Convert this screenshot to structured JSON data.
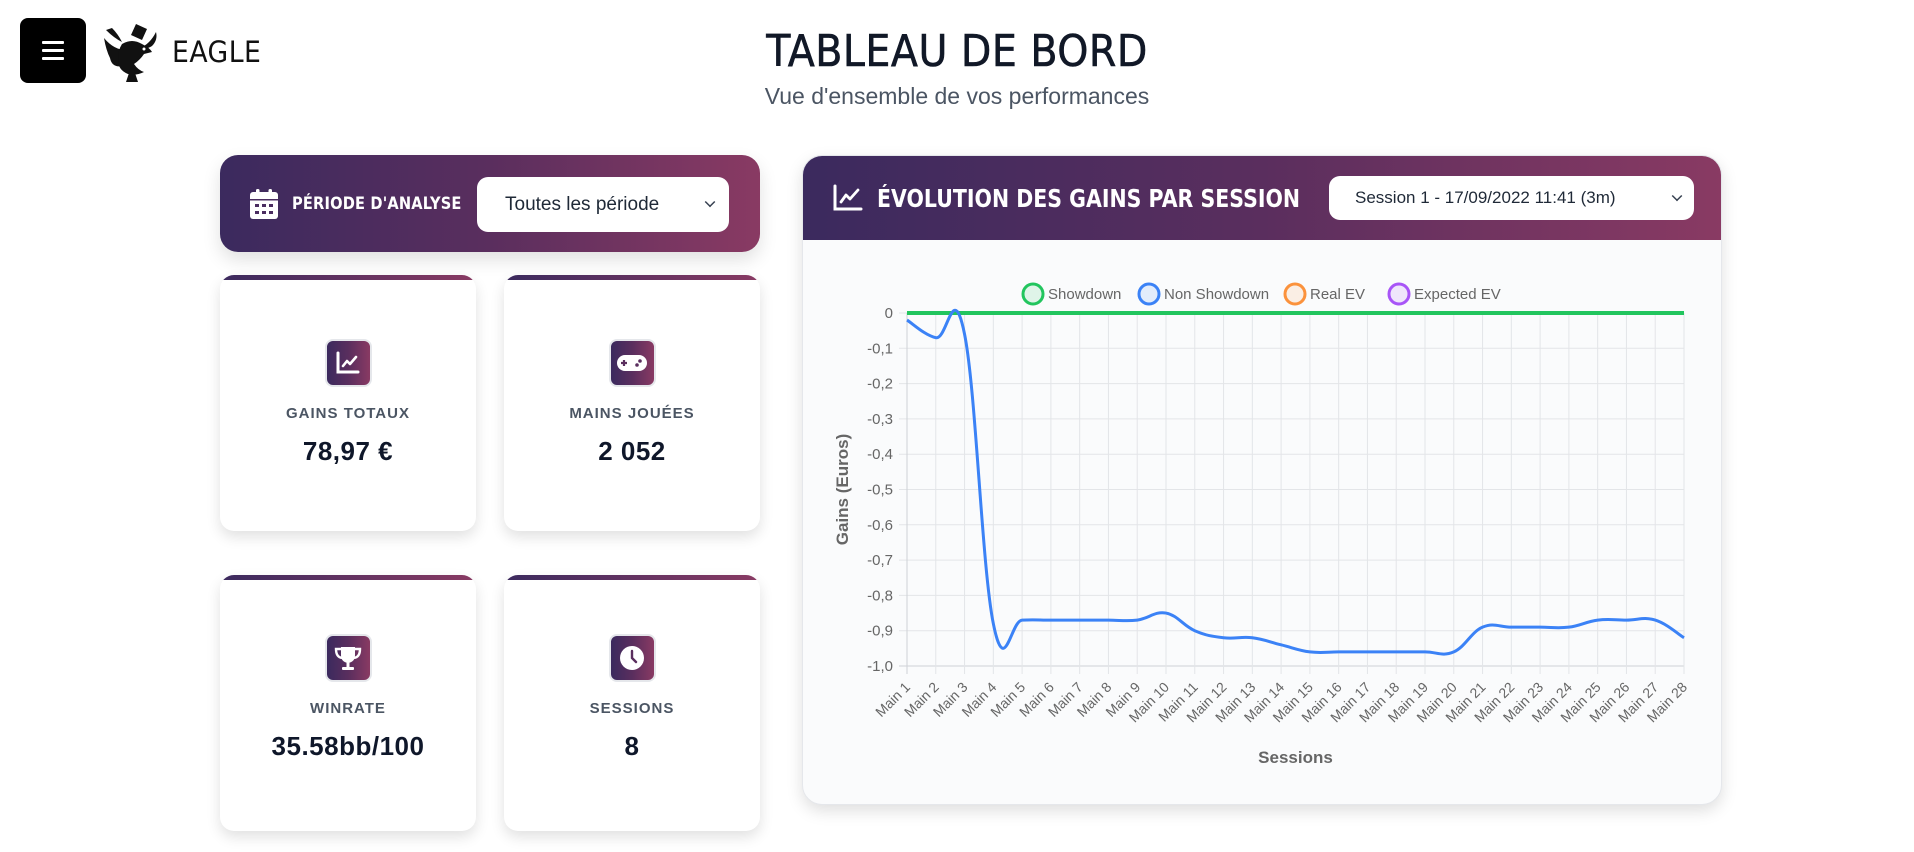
{
  "header": {
    "brand_name": "EAGLE",
    "title": "TABLEAU DE BORD",
    "subtitle": "Vue d'ensemble de vos performances",
    "menu_icon": "hamburger-icon",
    "logo_icon": "eagle-spade-logo"
  },
  "period": {
    "icon": "calendar-icon",
    "label": "PÉRIODE D'ANALYSE",
    "selected": "Toutes les période"
  },
  "stats": [
    {
      "icon": "chart-line-icon",
      "label": "GAINS TOTAUX",
      "value": "78,97 €"
    },
    {
      "icon": "gamepad-icon",
      "label": "MAINS JOUÉES",
      "value": "2 052"
    },
    {
      "icon": "trophy-icon",
      "label": "WINRATE",
      "value": "35.58bb/100"
    },
    {
      "icon": "clock-icon",
      "label": "SESSIONS",
      "value": "8"
    }
  ],
  "chart_panel": {
    "icon": "chart-line-icon",
    "title": "ÉVOLUTION DES GAINS PAR SESSION",
    "session_selected": "Session 1 - 17/09/2022 11:41 (3m)"
  },
  "colors": {
    "gradient_start": "#3b2a5e",
    "gradient_end": "#893a63",
    "showdown": "#22c55e",
    "non_showdown": "#3b82f6",
    "real_ev": "#fb923c",
    "expected_ev": "#a855f7"
  },
  "chart_data": {
    "type": "line",
    "title": "",
    "xlabel": "Sessions",
    "ylabel": "Gains (Euros)",
    "ylim": [
      -1.0,
      0
    ],
    "yticks": [
      "0",
      "-0,1",
      "-0,2",
      "-0,3",
      "-0,4",
      "-0,5",
      "-0,6",
      "-0,7",
      "-0,8",
      "-0,9",
      "-1,0"
    ],
    "grid": true,
    "legend_position": "top",
    "categories": [
      "Main 1",
      "Main 2",
      "Main 3",
      "Main 4",
      "Main 5",
      "Main 6",
      "Main 7",
      "Main 8",
      "Main 9",
      "Main 10",
      "Main 11",
      "Main 12",
      "Main 13",
      "Main 14",
      "Main 15",
      "Main 16",
      "Main 17",
      "Main 18",
      "Main 19",
      "Main 20",
      "Main 21",
      "Main 22",
      "Main 23",
      "Main 24",
      "Main 25",
      "Main 26",
      "Main 27",
      "Main 28"
    ],
    "series": [
      {
        "name": "Showdown",
        "color": "#22c55e",
        "values": [
          0,
          0,
          0,
          0,
          0,
          0,
          0,
          0,
          0,
          0,
          0,
          0,
          0,
          0,
          0,
          0,
          0,
          0,
          0,
          0,
          0,
          0,
          0,
          0,
          0,
          0,
          0,
          0
        ]
      },
      {
        "name": "Non Showdown",
        "color": "#3b82f6",
        "values": [
          -0.02,
          -0.07,
          -0.06,
          -0.88,
          -0.87,
          -0.87,
          -0.87,
          -0.87,
          -0.87,
          -0.85,
          -0.9,
          -0.92,
          -0.92,
          -0.94,
          -0.96,
          -0.96,
          -0.96,
          -0.96,
          -0.96,
          -0.96,
          -0.89,
          -0.89,
          -0.89,
          -0.89,
          -0.87,
          -0.87,
          -0.87,
          -0.92
        ]
      },
      {
        "name": "Real EV",
        "color": "#fb923c",
        "values": []
      },
      {
        "name": "Expected EV",
        "color": "#a855f7",
        "values": []
      }
    ]
  }
}
